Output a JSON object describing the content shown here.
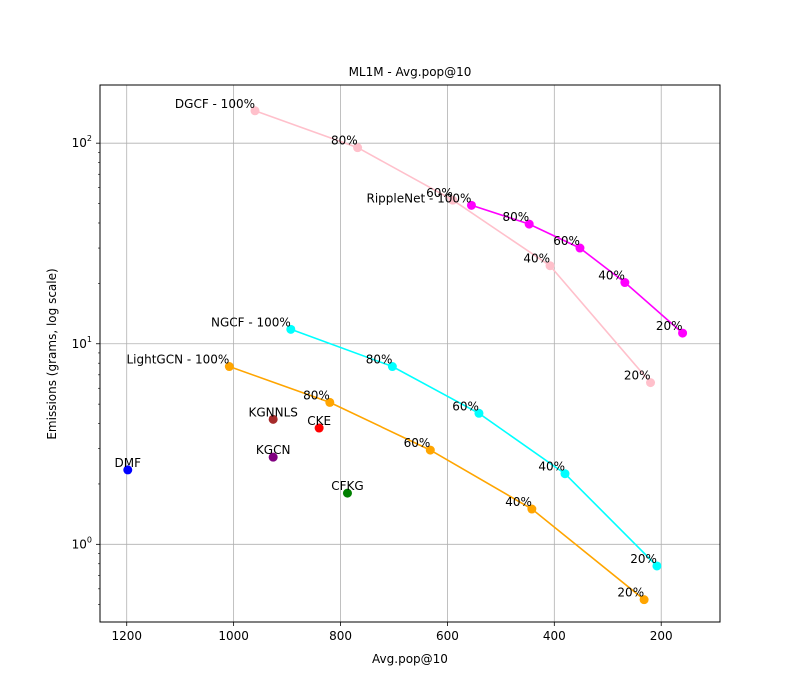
{
  "chart_data": {
    "type": "scatter",
    "title": "ML1M - Avg.pop@10",
    "xlabel": "Avg.pop@10",
    "ylabel": "Emissions (grams, log scale)",
    "x_inverted": true,
    "y_log": true,
    "xlim": [
      1250,
      90
    ],
    "ylim": [
      0.41,
      195
    ],
    "grid": true,
    "x_ticks": [
      1200,
      1000,
      800,
      600,
      400,
      200
    ],
    "y_ticks": [
      1,
      10,
      100
    ],
    "y_tick_labels": [
      {
        "base": "10",
        "exp": "0"
      },
      {
        "base": "10",
        "exp": "1"
      },
      {
        "base": "10",
        "exp": "2"
      }
    ],
    "series": [
      {
        "name": "DGCF",
        "color": "#ffc0cb",
        "line": true,
        "points": [
          {
            "x": 960,
            "y": 145,
            "label": "DGCF - 100%"
          },
          {
            "x": 768,
            "y": 95,
            "label": "80%"
          },
          {
            "x": 590,
            "y": 52,
            "label": "60%"
          },
          {
            "x": 408,
            "y": 24.5,
            "label": "40%"
          },
          {
            "x": 220,
            "y": 6.4,
            "label": "20%"
          }
        ]
      },
      {
        "name": "RippleNet",
        "color": "#ff00ff",
        "line": true,
        "points": [
          {
            "x": 555,
            "y": 49,
            "label": "RippleNet - 100%"
          },
          {
            "x": 447,
            "y": 39.5,
            "label": "80%"
          },
          {
            "x": 352,
            "y": 30,
            "label": "60%"
          },
          {
            "x": 268,
            "y": 20.2,
            "label": "40%"
          },
          {
            "x": 160,
            "y": 11.3,
            "label": "20%"
          }
        ]
      },
      {
        "name": "NGCF",
        "color": "#00ffff",
        "line": true,
        "points": [
          {
            "x": 893,
            "y": 11.8,
            "label": "NGCF - 100%"
          },
          {
            "x": 703,
            "y": 7.7,
            "label": "80%"
          },
          {
            "x": 541,
            "y": 4.5,
            "label": "60%"
          },
          {
            "x": 380,
            "y": 2.25,
            "label": "40%"
          },
          {
            "x": 208,
            "y": 0.78,
            "label": "20%"
          }
        ]
      },
      {
        "name": "LightGCN",
        "color": "#ffa500",
        "line": true,
        "points": [
          {
            "x": 1008,
            "y": 7.7,
            "label": "LightGCN - 100%"
          },
          {
            "x": 820,
            "y": 5.1,
            "label": "80%"
          },
          {
            "x": 632,
            "y": 2.95,
            "label": "60%"
          },
          {
            "x": 442,
            "y": 1.5,
            "label": "40%"
          },
          {
            "x": 232,
            "y": 0.53,
            "label": "20%"
          }
        ]
      },
      {
        "name": "KGNNLS",
        "color": "#a52a2a",
        "line": false,
        "points": [
          {
            "x": 926,
            "y": 4.2,
            "label": "KGNNLS"
          }
        ]
      },
      {
        "name": "CKE",
        "color": "#ff0000",
        "line": false,
        "points": [
          {
            "x": 840,
            "y": 3.8,
            "label": "CKE"
          }
        ]
      },
      {
        "name": "KGCN",
        "color": "#800080",
        "line": false,
        "points": [
          {
            "x": 926,
            "y": 2.72,
            "label": "KGCN"
          }
        ]
      },
      {
        "name": "DMF",
        "color": "#0000ff",
        "line": false,
        "points": [
          {
            "x": 1198,
            "y": 2.35,
            "label": "DMF"
          }
        ]
      },
      {
        "name": "CFKG",
        "color": "#008000",
        "line": false,
        "points": [
          {
            "x": 787,
            "y": 1.8,
            "label": "CFKG"
          }
        ]
      }
    ]
  }
}
